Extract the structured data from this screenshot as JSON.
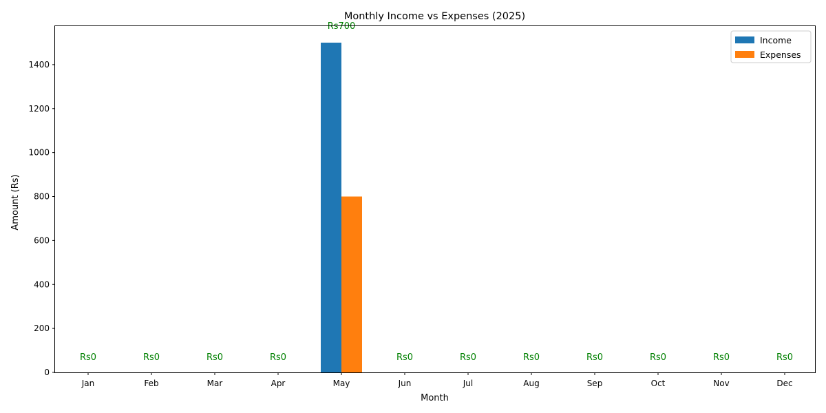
{
  "chart_data": {
    "type": "bar",
    "title": "Monthly Income vs Expenses (2025)",
    "xlabel": "Month",
    "ylabel": "Amount (Rs)",
    "categories": [
      "Jan",
      "Feb",
      "Mar",
      "Apr",
      "May",
      "Jun",
      "Jul",
      "Aug",
      "Sep",
      "Oct",
      "Nov",
      "Dec"
    ],
    "series": [
      {
        "name": "Income",
        "color": "#1f77b4",
        "values": [
          0,
          0,
          0,
          0,
          1500,
          0,
          0,
          0,
          0,
          0,
          0,
          0
        ]
      },
      {
        "name": "Expenses",
        "color": "#ff7f0e",
        "values": [
          0,
          0,
          0,
          0,
          800,
          0,
          0,
          0,
          0,
          0,
          0,
          0
        ]
      }
    ],
    "net_labels": [
      "Rs0",
      "Rs0",
      "Rs0",
      "Rs0",
      "Rs700",
      "Rs0",
      "Rs0",
      "Rs0",
      "Rs0",
      "Rs0",
      "Rs0",
      "Rs0"
    ],
    "net_label_color": "#008000",
    "ylim": [
      0,
      1575
    ],
    "yticks": [
      0,
      200,
      400,
      600,
      800,
      1000,
      1200,
      1400
    ],
    "grid": false,
    "legend_position": "top-right"
  }
}
